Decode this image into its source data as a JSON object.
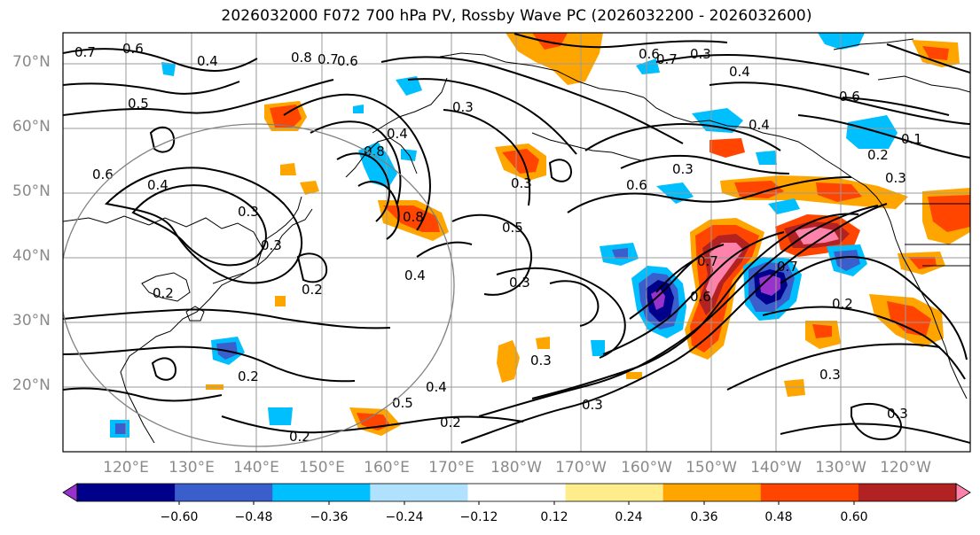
{
  "title": "2026032000 F072 700 hPa PV, Rossby Wave PC (2026032200 - 2026032600)",
  "lat_labels": [
    "70°N",
    "60°N",
    "50°N",
    "40°N",
    "30°N",
    "20°N"
  ],
  "lon_labels": [
    "120°E",
    "130°E",
    "140°E",
    "150°E",
    "160°E",
    "170°E",
    "180°W",
    "170°W",
    "160°W",
    "150°W",
    "140°W",
    "130°W",
    "120°W"
  ],
  "colorbar": {
    "ticks": [
      "−0.60",
      "−0.48",
      "−0.36",
      "−0.24",
      "−0.12",
      "0.12",
      "0.24",
      "0.36",
      "0.48",
      "0.60"
    ],
    "colors": [
      "#9932CC",
      "#00008B",
      "#3A5FCD",
      "#00BFFF",
      "#B0E2FF",
      "#FFFFFF",
      "#FFEC8B",
      "#FFA500",
      "#FF4500",
      "#B22222",
      "#FF82AB"
    ]
  },
  "contour_labels": [
    "0.7",
    "0.6",
    "0.4",
    "0.5",
    "0.8",
    "0.7",
    "0.6",
    "0.3",
    "0.4",
    "0.6",
    "0.8",
    "0.3",
    "0.4",
    "0.6",
    "0.7",
    "0.4",
    "0.3",
    "0.4",
    "0.3",
    "0.3",
    "0.3",
    "0.6",
    "0.3",
    "0.5",
    "0.8",
    "0.6",
    "0.3",
    "0.4",
    "0.2",
    "0.2",
    "0.3",
    "0.7",
    "0.6",
    "0.7",
    "0.2",
    "0.4",
    "0.5",
    "0.3",
    "0.2",
    "0.2",
    "0.3",
    "0.3",
    "0.2",
    "0.1",
    "0.2"
  ]
}
